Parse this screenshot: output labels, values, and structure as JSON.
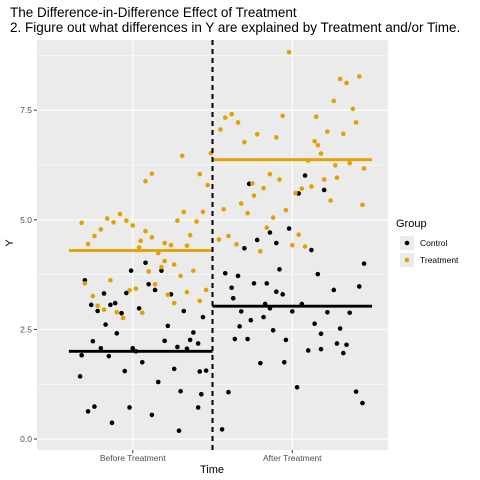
{
  "chart_data": {
    "type": "scatter",
    "title": "The Difference-in-Difference Effect of Treatment",
    "subtitle": "2. Figure out what differences in Y are explained by Treatment and/or Time.",
    "xlabel": "Time",
    "ylabel": "Y",
    "categories": [
      "Before Treatment",
      "After Treatment"
    ],
    "ylim": [
      -0.25,
      9.1
    ],
    "yticks": [
      0.0,
      2.5,
      5.0,
      7.5
    ],
    "ytick_labels": [
      "0.0",
      "2.5",
      "5.0",
      "7.5"
    ],
    "grid": true,
    "legend": {
      "title": "Group",
      "placement": "right"
    },
    "colors": {
      "Control": "#000000",
      "Treatment": "#E69F00",
      "panel": "#EBEBEB",
      "grid": "#FFFFFF"
    },
    "treatment_line_x": 1.5,
    "series": [
      {
        "name": "Control",
        "means": [
          2.0,
          3.03
        ],
        "points": [
          [
            0.67,
            1.43
          ],
          [
            0.72,
            0.63
          ],
          [
            0.76,
            0.74
          ],
          [
            0.87,
            0.37
          ],
          [
            0.98,
            0.72
          ],
          [
            1.12,
            0.55
          ],
          [
            1.29,
            0.19
          ],
          [
            1.41,
            0.72
          ],
          [
            1.43,
            1.02
          ],
          [
            0.8,
            2.07
          ],
          [
            0.83,
            2.61
          ],
          [
            0.89,
            3.1
          ],
          [
            0.96,
            3.33
          ],
          [
            1.02,
            2.0
          ],
          [
            1.04,
            2.98
          ],
          [
            1.1,
            3.53
          ],
          [
            1.14,
            3.4
          ],
          [
            1.18,
            3.84
          ],
          [
            1.24,
            3.3
          ],
          [
            1.28,
            2.1
          ],
          [
            1.32,
            2.92
          ],
          [
            1.36,
            2.26
          ],
          [
            1.41,
            2.18
          ],
          [
            1.44,
            2.78
          ],
          [
            0.7,
            3.62
          ],
          [
            0.75,
            2.23
          ],
          [
            0.78,
            2.92
          ],
          [
            0.85,
            1.89
          ],
          [
            0.9,
            2.41
          ],
          [
            0.95,
            1.55
          ],
          [
            1.0,
            2.07
          ],
          [
            1.06,
            1.75
          ],
          [
            1.16,
            1.3
          ],
          [
            1.22,
            2.58
          ],
          [
            1.26,
            1.6
          ],
          [
            1.3,
            1.09
          ],
          [
            1.34,
            2.06
          ],
          [
            1.38,
            2.43
          ],
          [
            1.46,
            1.56
          ],
          [
            0.68,
            1.91
          ],
          [
            0.74,
            3.06
          ],
          [
            0.82,
            3.32
          ],
          [
            0.86,
            3.06
          ],
          [
            0.93,
            2.87
          ],
          [
            0.99,
            3.84
          ],
          [
            1.08,
            4.02
          ],
          [
            1.2,
            2.24
          ],
          [
            1.42,
            1.54
          ],
          [
            1.56,
            0.22
          ],
          [
            1.58,
            3.78
          ],
          [
            1.62,
            3.45
          ],
          [
            1.66,
            3.72
          ],
          [
            1.7,
            4.35
          ],
          [
            1.73,
            5.82
          ],
          [
            1.78,
            4.54
          ],
          [
            1.83,
            3.08
          ],
          [
            1.86,
            4.71
          ],
          [
            1.9,
            4.47
          ],
          [
            1.95,
            1.75
          ],
          [
            1.98,
            4.8
          ],
          [
            2.04,
            5.6
          ],
          [
            2.08,
            6.01
          ],
          [
            2.12,
            4.31
          ],
          [
            2.16,
            3.76
          ],
          [
            2.2,
            5.68
          ],
          [
            2.26,
            3.4
          ],
          [
            2.3,
            2.52
          ],
          [
            2.34,
            2.15
          ],
          [
            2.4,
            1.08
          ],
          [
            2.44,
            0.82
          ],
          [
            1.6,
            1.07
          ],
          [
            1.64,
            2.28
          ],
          [
            1.68,
            2.91
          ],
          [
            1.74,
            2.71
          ],
          [
            1.8,
            1.73
          ],
          [
            1.84,
            3.55
          ],
          [
            1.88,
            2.48
          ],
          [
            1.92,
            3.87
          ],
          [
            1.96,
            2.26
          ],
          [
            2.0,
            2.91
          ],
          [
            2.06,
            3.08
          ],
          [
            2.1,
            2.02
          ],
          [
            2.14,
            2.63
          ],
          [
            2.18,
            2.4
          ],
          [
            2.22,
            2.89
          ],
          [
            2.28,
            2.18
          ],
          [
            2.32,
            1.96
          ],
          [
            2.36,
            2.88
          ],
          [
            2.42,
            3.48
          ],
          [
            2.45,
            4.0
          ],
          [
            1.63,
            3.21
          ],
          [
            1.67,
            2.57
          ],
          [
            1.72,
            2.28
          ],
          [
            1.76,
            3.55
          ],
          [
            1.82,
            2.78
          ],
          [
            1.86,
            2.98
          ],
          [
            1.9,
            3.36
          ],
          [
            1.94,
            3.3
          ],
          [
            2.03,
            1.18
          ],
          [
            2.18,
            2.05
          ]
        ]
      },
      {
        "name": "Treatment",
        "means": [
          4.3,
          6.37
        ],
        "points": [
          [
            0.68,
            4.93
          ],
          [
            0.72,
            4.45
          ],
          [
            0.76,
            4.63
          ],
          [
            0.8,
            4.78
          ],
          [
            0.84,
            5.03
          ],
          [
            0.88,
            4.94
          ],
          [
            0.92,
            5.13
          ],
          [
            0.96,
            4.98
          ],
          [
            1.0,
            4.87
          ],
          [
            1.04,
            4.37
          ],
          [
            1.08,
            4.74
          ],
          [
            1.12,
            4.6
          ],
          [
            1.16,
            4.24
          ],
          [
            1.2,
            4.47
          ],
          [
            1.24,
            4.42
          ],
          [
            1.28,
            4.98
          ],
          [
            1.32,
            5.18
          ],
          [
            1.36,
            4.65
          ],
          [
            1.4,
            4.96
          ],
          [
            1.44,
            5.18
          ],
          [
            0.7,
            3.55
          ],
          [
            0.75,
            3.26
          ],
          [
            0.78,
            3.04
          ],
          [
            0.82,
            2.95
          ],
          [
            0.86,
            3.62
          ],
          [
            0.9,
            2.89
          ],
          [
            0.94,
            2.76
          ],
          [
            0.98,
            3.39
          ],
          [
            1.02,
            3.43
          ],
          [
            1.06,
            2.88
          ],
          [
            1.1,
            3.82
          ],
          [
            1.14,
            3.53
          ],
          [
            1.18,
            3.92
          ],
          [
            1.22,
            3.29
          ],
          [
            1.26,
            3.1
          ],
          [
            1.3,
            3.72
          ],
          [
            1.34,
            3.35
          ],
          [
            1.38,
            3.84
          ],
          [
            1.42,
            3.15
          ],
          [
            1.46,
            3.4
          ],
          [
            1.49,
            6.52
          ],
          [
            1.47,
            5.79
          ],
          [
            1.42,
            6.04
          ],
          [
            1.31,
            6.46
          ],
          [
            1.12,
            6.05
          ],
          [
            1.08,
            5.88
          ],
          [
            1.05,
            4.52
          ],
          [
            1.2,
            4.06
          ],
          [
            1.26,
            3.98
          ],
          [
            1.34,
            4.41
          ],
          [
            1.55,
            7.06
          ],
          [
            1.58,
            7.33
          ],
          [
            1.62,
            7.41
          ],
          [
            1.66,
            7.22
          ],
          [
            1.7,
            6.77
          ],
          [
            1.75,
            5.83
          ],
          [
            1.78,
            6.95
          ],
          [
            1.82,
            5.72
          ],
          [
            1.86,
            6.04
          ],
          [
            1.9,
            6.88
          ],
          [
            1.94,
            7.37
          ],
          [
            1.98,
            8.82
          ],
          [
            2.02,
            5.61
          ],
          [
            2.06,
            5.71
          ],
          [
            2.1,
            6.35
          ],
          [
            2.14,
            6.79
          ],
          [
            2.18,
            6.51
          ],
          [
            2.22,
            7.01
          ],
          [
            2.26,
            7.71
          ],
          [
            2.3,
            8.21
          ],
          [
            2.34,
            8.12
          ],
          [
            2.38,
            7.53
          ],
          [
            2.42,
            8.27
          ],
          [
            2.45,
            6.17
          ],
          [
            1.57,
            5.24
          ],
          [
            1.6,
            4.63
          ],
          [
            1.65,
            4.44
          ],
          [
            1.68,
            5.37
          ],
          [
            1.72,
            5.15
          ],
          [
            1.76,
            5.55
          ],
          [
            1.8,
            4.28
          ],
          [
            1.84,
            4.82
          ],
          [
            1.88,
            5.05
          ],
          [
            1.92,
            5.92
          ],
          [
            1.96,
            5.22
          ],
          [
            2.0,
            4.42
          ],
          [
            2.04,
            4.66
          ],
          [
            2.08,
            4.39
          ],
          [
            2.12,
            5.76
          ],
          [
            2.16,
            6.7
          ],
          [
            2.2,
            5.92
          ],
          [
            2.24,
            5.44
          ],
          [
            2.28,
            5.96
          ],
          [
            2.32,
            6.96
          ],
          [
            2.36,
            6.29
          ],
          [
            2.4,
            7.22
          ],
          [
            2.44,
            5.34
          ],
          [
            1.54,
            4.55
          ],
          [
            2.15,
            7.35
          ],
          [
            2.27,
            6.24
          ]
        ]
      }
    ]
  }
}
